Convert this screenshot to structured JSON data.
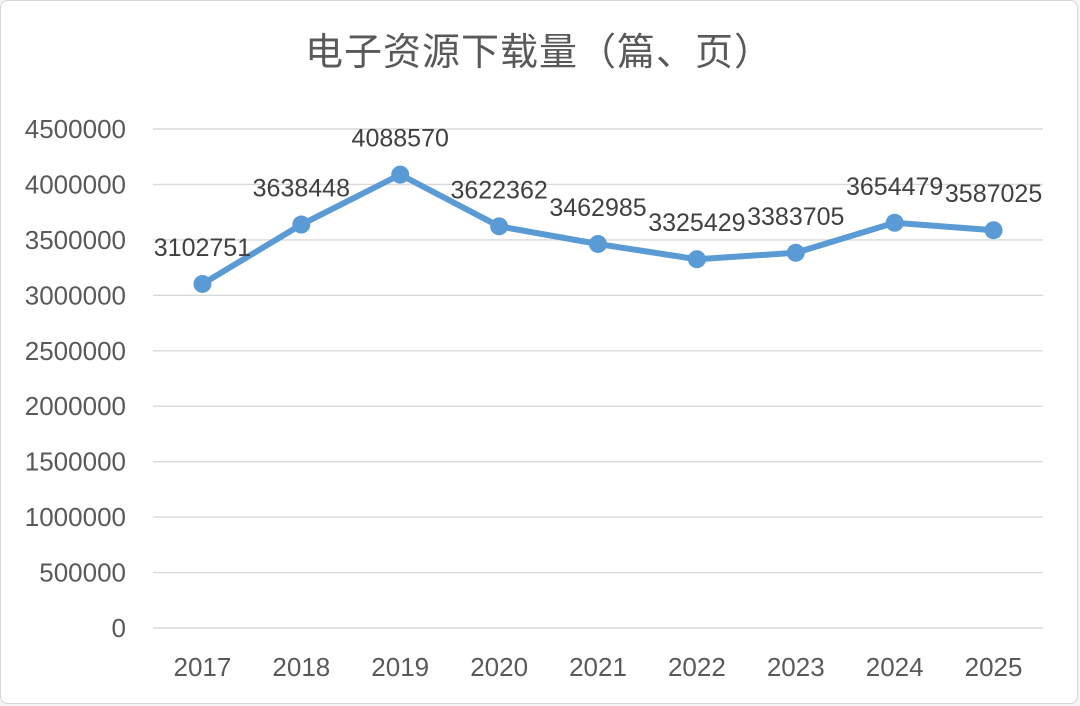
{
  "chart": {
    "colors": {
      "line": "#5B9BD5",
      "marker": "#5B9BD5",
      "gridline": "#D9D9D9",
      "title_text": "#595959",
      "axis_text": "#595959",
      "data_label_text": "#404040",
      "background": "#FFFFFF",
      "frame_border": "#D6D6D6"
    }
  },
  "chart_data": {
    "type": "line",
    "title": "电子资源下载量（篇、页）",
    "categories": [
      "2017",
      "2018",
      "2019",
      "2020",
      "2021",
      "2022",
      "2023",
      "2024",
      "2025"
    ],
    "series": [
      {
        "name": "电子资源下载量",
        "values": [
          3102751,
          3638448,
          4088570,
          3622362,
          3462985,
          3325429,
          3383705,
          3654479,
          3587025
        ]
      }
    ],
    "data_labels": [
      "3102751",
      "3638448",
      "4088570",
      "3622362",
      "3462985",
      "3325429",
      "3383705",
      "3654479",
      "3587025"
    ],
    "data_labels_visible": true,
    "xlabel": "",
    "ylabel": "",
    "ylim": [
      0,
      4500000
    ],
    "y_tick_step": 500000,
    "y_tick_labels": [
      "0",
      "500000",
      "1000000",
      "1500000",
      "2000000",
      "2500000",
      "3000000",
      "3500000",
      "4000000",
      "4500000"
    ],
    "grid": true,
    "legend": false,
    "marker": "circle",
    "line_smooth": false
  }
}
